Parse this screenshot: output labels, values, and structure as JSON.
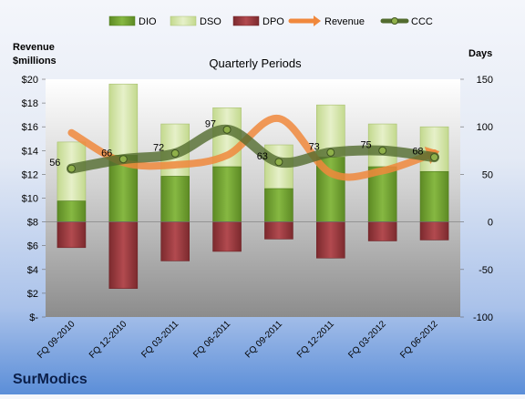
{
  "chart_data": {
    "type": "bar",
    "title": "Quarterly Periods",
    "company": "SurModics",
    "left_axis_label": [
      "Revenue",
      "$millions"
    ],
    "right_axis_label": "Days",
    "categories": [
      "FQ 09-2010",
      "FQ 12-2010",
      "FQ 03-2011",
      "FQ 06-2011",
      "FQ 09-2011",
      "FQ 12-2011",
      "FQ 03-2012",
      "FQ 06-2012"
    ],
    "left_axis": {
      "min": 0,
      "max": 20,
      "step": 2,
      "ticks": [
        "$-",
        "$2",
        "$4",
        "$6",
        "$8",
        "$10",
        "$12",
        "$14",
        "$16",
        "$18",
        "$20"
      ]
    },
    "right_axis": {
      "min": -100,
      "max": 150,
      "step": 50,
      "ticks": [
        "-100",
        "-50",
        "0",
        "50",
        "100",
        "150"
      ]
    },
    "legend": [
      "DIO",
      "DSO",
      "DPO",
      "Revenue",
      "CCC"
    ],
    "legend_position": "top",
    "series": [
      {
        "name": "DIO",
        "axis": "right",
        "values": [
          22,
          70,
          48,
          58,
          35,
          68,
          58,
          53
        ]
      },
      {
        "name": "DSO",
        "axis": "right",
        "values": [
          62,
          75,
          55,
          62,
          46,
          55,
          45,
          47
        ]
      },
      {
        "name": "DPO",
        "axis": "right",
        "values": [
          -27,
          -70,
          -41,
          -31,
          -18,
          -38,
          -20,
          -19
        ]
      },
      {
        "name": "Revenue",
        "axis": "left",
        "values": [
          15.5,
          13.0,
          12.8,
          13.6,
          16.7,
          12.1,
          12.3,
          13.8
        ]
      },
      {
        "name": "CCC",
        "axis": "right",
        "values": [
          56,
          66,
          72,
          97,
          63,
          73,
          75,
          68
        ]
      }
    ],
    "ccc_labels": [
      "56",
      "66",
      "72",
      "97",
      "63",
      "73",
      "75",
      "68"
    ],
    "colors": {
      "DIO": "#74a232",
      "DSO": "#d5e6ae",
      "DPO": "#9c3a3e",
      "Revenue": "#f0883c",
      "CCC": "#526b2e",
      "plot_bg": "#b9b9b9"
    },
    "grid": false
  }
}
